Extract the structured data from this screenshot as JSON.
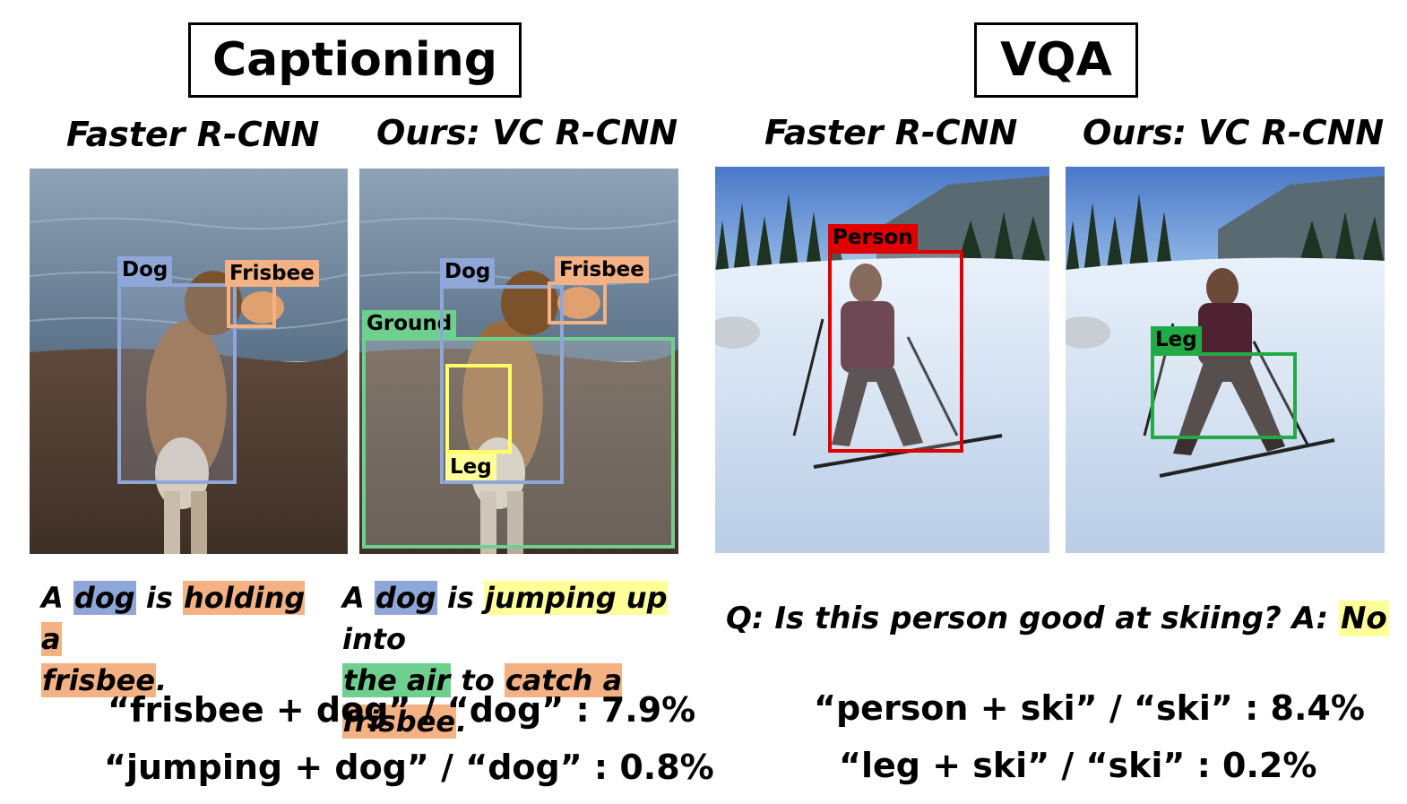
{
  "captioning": {
    "title": "Captioning",
    "left_method": "Faster R-CNN",
    "right_method": "Ours: VC R-CNN",
    "left_boxes": {
      "dog": "Dog",
      "frisbee": "Frisbee"
    },
    "right_boxes": {
      "dog": "Dog",
      "frisbee": "Frisbee",
      "ground": "Ground",
      "leg": "Leg"
    },
    "left_caption": {
      "w1": "A ",
      "dog": "dog",
      "w2": " is ",
      "holding": "holding a",
      "frisbee": "frisbee",
      "end": "."
    },
    "right_caption": {
      "w1": "A ",
      "dog": "dog",
      "w2": " is ",
      "jumping": "jumping up",
      "w3": " into",
      "air": "the air",
      "w4": " to ",
      "catch": "catch a frisbee",
      "end": "."
    },
    "stats": [
      "“frisbee + dog” / “dog” : 7.9%",
      "“jumping + dog” / “dog” : 0.8%"
    ]
  },
  "vqa": {
    "title": "VQA",
    "left_method": "Faster R-CNN",
    "right_method": "Ours: VC R-CNN",
    "left_boxes": {
      "person": "Person"
    },
    "right_boxes": {
      "leg": "Leg"
    },
    "question": "Q: Is this person good at skiing?  A: ",
    "answer": "No",
    "stats": [
      "“person + ski” / “ski” : 8.4%",
      "“leg + ski” / “ski” : 0.2%"
    ]
  },
  "colors": {
    "blue": "#8ea7d8",
    "orange": "#f4b183",
    "green": "#6fcf8f",
    "yellow": "#ffff99",
    "red": "#e00000",
    "dark_green": "#22aa44"
  }
}
